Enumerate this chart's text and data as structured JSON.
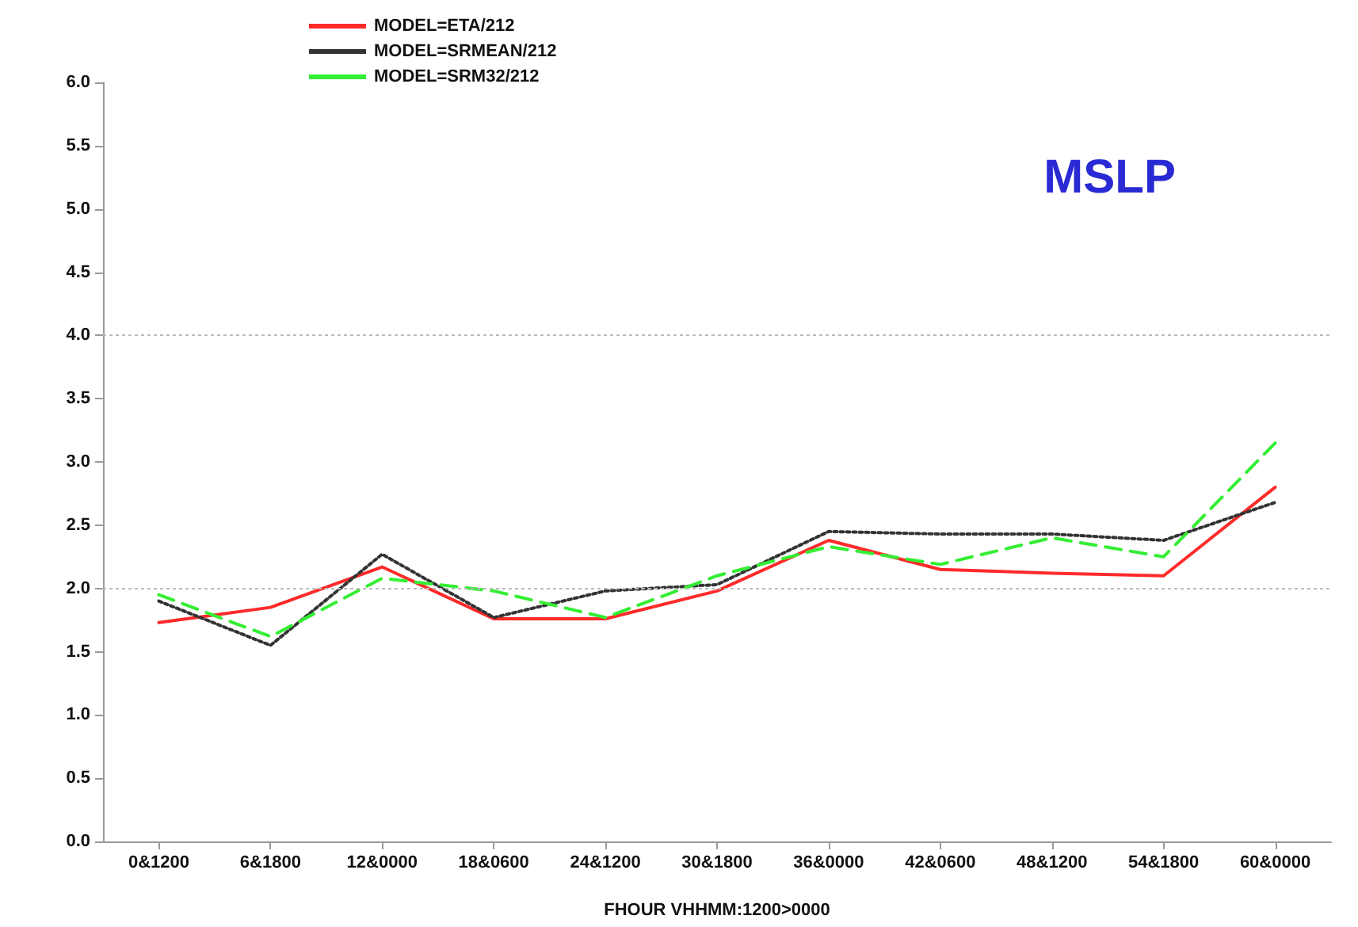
{
  "chart_data": {
    "type": "line",
    "title": "MSLP",
    "xlabel": "FHOUR VHHMM:1200>0000",
    "categories": [
      "0&1200",
      "6&1800",
      "12&0000",
      "18&0600",
      "24&1200",
      "30&1800",
      "36&0000",
      "42&0600",
      "48&1200",
      "54&1800",
      "60&0000"
    ],
    "series": [
      {
        "name": "MODEL=ETA/212",
        "color": "#ff2a2a",
        "line_style": "solid",
        "values": [
          1.73,
          1.85,
          2.17,
          1.76,
          1.76,
          1.98,
          2.38,
          2.15,
          2.12,
          2.1,
          2.8
        ]
      },
      {
        "name": "MODEL=SRMEAN/212",
        "color": "#333333",
        "line_style": "dotted",
        "values": [
          1.9,
          1.55,
          2.27,
          1.77,
          1.98,
          2.03,
          2.45,
          2.43,
          2.43,
          2.38,
          2.68
        ]
      },
      {
        "name": "MODEL=SRM32/212",
        "color": "#33ee33",
        "line_style": "dashed",
        "values": [
          1.95,
          1.62,
          2.08,
          1.98,
          1.77,
          2.1,
          2.33,
          2.19,
          2.4,
          2.25,
          3.15
        ]
      }
    ],
    "ylim": [
      0,
      6
    ],
    "yticks": [
      {
        "value": 0,
        "label": "0.0"
      },
      0.5,
      {
        "value": 1,
        "label": "1.0"
      },
      1.5,
      {
        "value": 2,
        "label": "2.0"
      },
      2.5,
      {
        "value": 3,
        "label": "3.0"
      },
      3.5,
      {
        "value": 4,
        "label": "4.0"
      },
      4.5,
      {
        "value": 5,
        "label": "5.0"
      },
      5.5,
      {
        "value": 6,
        "label": "6.0"
      }
    ],
    "ref_lines": [
      {
        "axis": "y",
        "value": 2,
        "color": "#bbbbbb",
        "line_style": "dotted"
      },
      {
        "axis": "y",
        "value": 4,
        "color": "#bbbbbb",
        "line_style": "dotted"
      }
    ],
    "grid": false,
    "legend": "top left",
    "marker": "none"
  }
}
